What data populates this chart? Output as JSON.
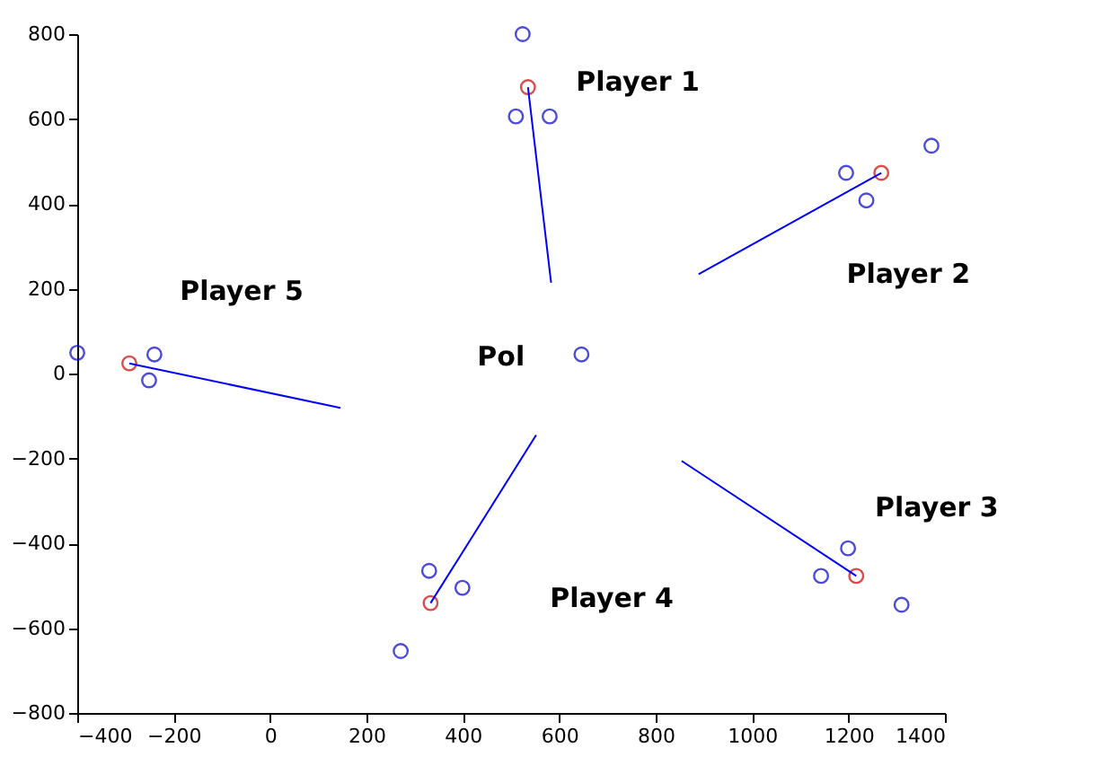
{
  "chart_data": {
    "type": "scatter",
    "xlim": [
      -400,
      1400
    ],
    "ylim": [
      -800,
      800
    ],
    "xticks": [
      -400,
      -200,
      0,
      200,
      400,
      600,
      800,
      1000,
      1200,
      1400
    ],
    "yticks": [
      -800,
      -600,
      -400,
      -200,
      0,
      200,
      400,
      600,
      800
    ],
    "grid": false,
    "series": [
      {
        "marker": "circle",
        "color": "#0000cc",
        "x": [
          524,
          510,
          580,
          1195,
          1237,
          1372,
          1199,
          1143,
          1310,
          330,
          399,
          271,
          -400,
          -240,
          -251,
          646
        ],
        "values": [
          800,
          606,
          606,
          473,
          408,
          537,
          -412,
          -477,
          -545,
          -465,
          -505,
          -654,
          49,
          45,
          -16,
          45
        ]
      },
      {
        "marker": "circle",
        "color": "#cc0000",
        "x": [
          535,
          1268,
          1216,
          333,
          -292
        ],
        "values": [
          675,
          473,
          -477,
          -541,
          24
        ]
      },
      {
        "type": "line",
        "color": "#0000ff",
        "x": [
          535,
          583
        ],
        "values": [
          675,
          214
        ]
      },
      {
        "type": "line",
        "color": "#0000ff",
        "x": [
          1268,
          889
        ],
        "values": [
          473,
          234
        ]
      },
      {
        "type": "line",
        "color": "#0000ff",
        "x": [
          1216,
          854
        ],
        "values": [
          -477,
          -206
        ]
      },
      {
        "type": "line",
        "color": "#0000ff",
        "x": [
          333,
          552
        ],
        "values": [
          -541,
          -145
        ]
      },
      {
        "type": "line",
        "color": "#0000ff",
        "x": [
          -292,
          146
        ],
        "values": [
          24,
          -81
        ]
      }
    ],
    "annotations": [
      "Player 1",
      "Player 2",
      "Player 3",
      "Player 4",
      "Player 5",
      "Pol"
    ]
  }
}
